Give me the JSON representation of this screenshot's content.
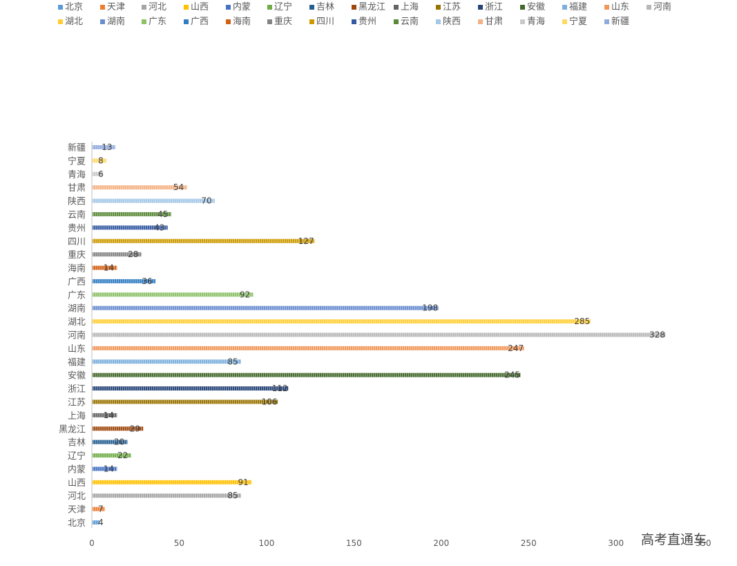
{
  "chart_data": {
    "type": "bar",
    "orientation": "horizontal",
    "categories": [
      "北京",
      "天津",
      "河北",
      "山西",
      "内蒙",
      "辽宁",
      "吉林",
      "黑龙江",
      "上海",
      "江苏",
      "浙江",
      "安徽",
      "福建",
      "山东",
      "河南",
      "湖北",
      "湖南",
      "广东",
      "广西",
      "海南",
      "重庆",
      "四川",
      "贵州",
      "云南",
      "陕西",
      "甘肃",
      "青海",
      "宁夏",
      "新疆"
    ],
    "values": [
      4,
      7,
      85,
      91,
      14,
      22,
      20,
      29,
      14,
      106,
      112,
      245,
      85,
      247,
      328,
      285,
      198,
      92,
      36,
      14,
      28,
      127,
      43,
      45,
      70,
      54,
      6,
      8,
      13
    ],
    "colors": [
      "#5B9BD5",
      "#ED7D31",
      "#A5A5A5",
      "#FFC000",
      "#4472C4",
      "#70AD47",
      "#255E91",
      "#9E480E",
      "#636363",
      "#997300",
      "#264478",
      "#43682B",
      "#7CAFDD",
      "#F1975A",
      "#B7B7B7",
      "#FFCD33",
      "#698ED0",
      "#8CC168",
      "#327DC2",
      "#D26012",
      "#848484",
      "#CC9A00",
      "#335AA1",
      "#5A8A39",
      "#A3C7E7",
      "#F4B183",
      "#C9C9C9",
      "#FFD966",
      "#8FAADC"
    ],
    "xlim": [
      0,
      350
    ],
    "xticks": [
      0,
      50,
      100,
      150,
      200,
      250,
      300,
      350
    ],
    "grid": false,
    "legend_position": "top",
    "title": "",
    "xlabel": "",
    "ylabel": ""
  },
  "watermark": "高考直通车"
}
